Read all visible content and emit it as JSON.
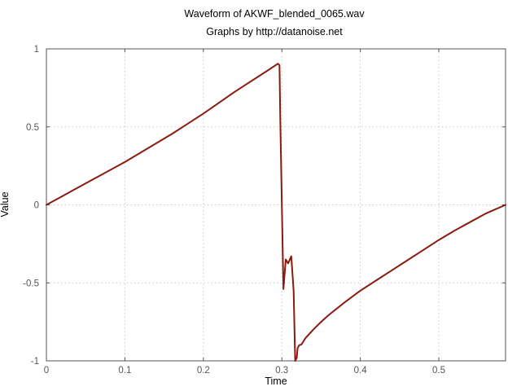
{
  "chart_data": {
    "type": "line",
    "title": "Waveform of AKWF_blended_0065.wav",
    "subtitle": "Graphs by http://datanoise.net",
    "xlabel": "Time",
    "ylabel": "Value",
    "xlim": [
      0,
      0.585
    ],
    "ylim": [
      -1,
      1
    ],
    "xticks": [
      0,
      0.1,
      0.2,
      0.3,
      0.4,
      0.5
    ],
    "xtick_labels": [
      "0",
      "0.1",
      "0.2",
      "0.3",
      "0.4",
      "0.5"
    ],
    "yticks": [
      -1,
      -0.5,
      0,
      0.5,
      1
    ],
    "ytick_labels": [
      "-1",
      "-0.5",
      "0",
      "0.5",
      "1"
    ],
    "grid": true,
    "colors": {
      "line": "#8b1a10",
      "axis": "#555555",
      "grid": "#c8c8c8"
    },
    "series": [
      {
        "x": [
          0,
          0.02,
          0.04,
          0.06,
          0.08,
          0.1,
          0.12,
          0.14,
          0.16,
          0.18,
          0.2,
          0.22,
          0.24,
          0.26,
          0.28,
          0.295,
          0.297,
          0.298,
          0.3,
          0.302,
          0.305,
          0.308,
          0.312,
          0.315,
          0.317,
          0.319,
          0.32,
          0.322,
          0.325,
          0.33,
          0.34,
          0.35,
          0.36,
          0.38,
          0.4,
          0.42,
          0.44,
          0.46,
          0.48,
          0.5,
          0.52,
          0.54,
          0.56,
          0.585
        ],
        "y": [
          0,
          0.055,
          0.11,
          0.165,
          0.22,
          0.275,
          0.335,
          0.395,
          0.455,
          0.52,
          0.585,
          0.655,
          0.725,
          0.79,
          0.855,
          0.905,
          0.895,
          0.55,
          0.0,
          -0.54,
          -0.35,
          -0.375,
          -0.33,
          -0.55,
          -1.0,
          -0.98,
          -0.92,
          -0.9,
          -0.895,
          -0.855,
          -0.8,
          -0.75,
          -0.705,
          -0.625,
          -0.55,
          -0.485,
          -0.42,
          -0.355,
          -0.29,
          -0.225,
          -0.165,
          -0.11,
          -0.055,
          0
        ]
      }
    ]
  }
}
